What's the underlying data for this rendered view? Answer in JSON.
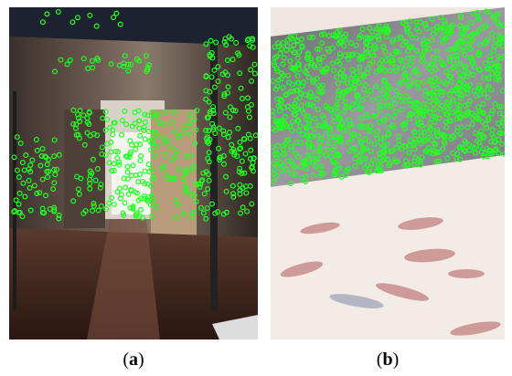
{
  "panels": [
    {
      "open": "(",
      "letter": "a",
      "close": ")"
    },
    {
      "open": "(",
      "letter": "b",
      "close": ")"
    }
  ]
}
